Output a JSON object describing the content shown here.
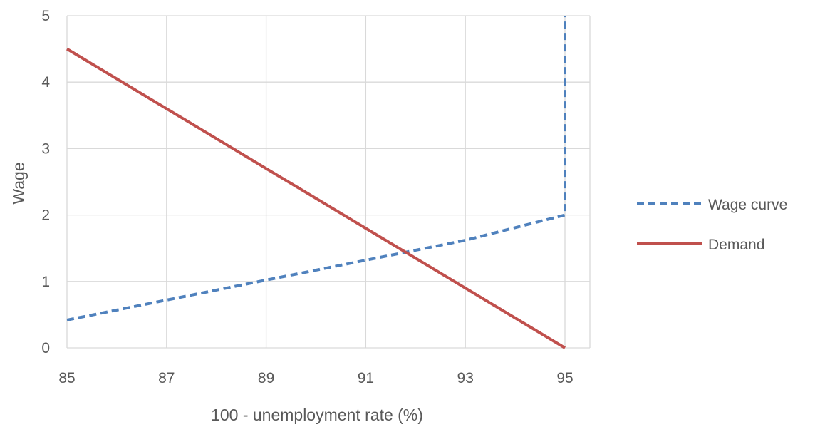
{
  "chart_data": {
    "type": "line",
    "title": "",
    "xlabel": "100 - unemployment  rate (%)",
    "ylabel": "Wage",
    "xlim": [
      85,
      95
    ],
    "ylim": [
      0,
      5
    ],
    "x_ticks": [
      85,
      87,
      89,
      91,
      93,
      95
    ],
    "y_ticks": [
      0,
      1,
      2,
      3,
      4,
      5
    ],
    "grid": true,
    "legend_position": "right",
    "series": [
      {
        "name": "Wage curve",
        "color": "#4F81BD",
        "style": "dashed",
        "points": [
          [
            85,
            0.42
          ],
          [
            87,
            0.72
          ],
          [
            89,
            1.02
          ],
          [
            91,
            1.32
          ],
          [
            93,
            1.62
          ],
          [
            95,
            2.0
          ],
          [
            95,
            5.0
          ]
        ]
      },
      {
        "name": "Demand",
        "color": "#C0504D",
        "style": "solid",
        "points": [
          [
            85,
            4.5
          ],
          [
            95,
            0.0
          ]
        ]
      }
    ]
  }
}
